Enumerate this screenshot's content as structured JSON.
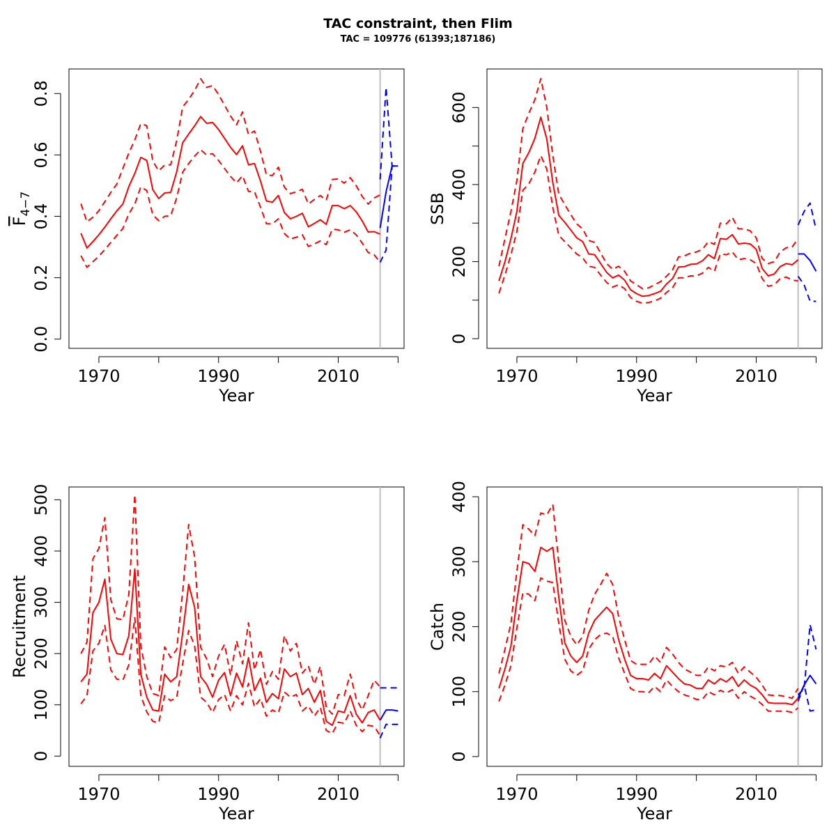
{
  "title": "TAC constraint, then Flim",
  "subtitle": "TAC = 109776 (61393;187186)",
  "colors": {
    "historic": "#ff0000",
    "forecast": "#0000ff",
    "divider": "#bebebe",
    "axis": "#000000"
  },
  "chart_data": [
    {
      "type": "line",
      "ylabel_main": "F",
      "ylabel_sub": "4−7",
      "xlabel": "Year",
      "xlim": [
        1965,
        2021
      ],
      "ylim": [
        -0.03,
        0.88
      ],
      "xticks": [
        1970,
        1980,
        1990,
        2000,
        2010,
        2020
      ],
      "xtick_labels": [
        "1970",
        "",
        "1990",
        "",
        "2010",
        ""
      ],
      "yticks": [
        0.0,
        0.2,
        0.4,
        0.6,
        0.8
      ],
      "ytick_labels": [
        "0.0",
        "0.2",
        "0.4",
        "0.6",
        "0.8"
      ],
      "divider_x": 2017,
      "x": [
        1967,
        1968,
        1969,
        1970,
        1971,
        1972,
        1973,
        1974,
        1975,
        1976,
        1977,
        1978,
        1979,
        1980,
        1981,
        1982,
        1983,
        1984,
        1985,
        1986,
        1987,
        1988,
        1989,
        1990,
        1991,
        1992,
        1993,
        1994,
        1995,
        1996,
        1997,
        1998,
        1999,
        2000,
        2001,
        2002,
        2003,
        2004,
        2005,
        2006,
        2007,
        2008,
        2009,
        2010,
        2011,
        2012,
        2013,
        2014,
        2015,
        2016,
        2017
      ],
      "series": [
        {
          "role": "estimate",
          "values": [
            0.345,
            0.297,
            0.318,
            0.34,
            0.365,
            0.392,
            0.418,
            0.44,
            0.497,
            0.54,
            0.592,
            0.582,
            0.487,
            0.458,
            0.476,
            0.478,
            0.545,
            0.64,
            0.668,
            0.695,
            0.725,
            0.703,
            0.706,
            0.683,
            0.654,
            0.625,
            0.601,
            0.63,
            0.568,
            0.572,
            0.515,
            0.45,
            0.446,
            0.468,
            0.412,
            0.392,
            0.4,
            0.41,
            0.366,
            0.377,
            0.389,
            0.374,
            0.435,
            0.435,
            0.425,
            0.435,
            0.415,
            0.385,
            0.349,
            0.35,
            0.342
          ]
        },
        {
          "role": "upper",
          "values": [
            0.441,
            0.382,
            0.397,
            0.418,
            0.448,
            0.478,
            0.505,
            0.556,
            0.606,
            0.649,
            0.702,
            0.695,
            0.58,
            0.548,
            0.567,
            0.568,
            0.646,
            0.756,
            0.781,
            0.81,
            0.848,
            0.82,
            0.826,
            0.797,
            0.762,
            0.727,
            0.698,
            0.74,
            0.666,
            0.678,
            0.612,
            0.535,
            0.533,
            0.56,
            0.495,
            0.474,
            0.48,
            0.488,
            0.44,
            0.455,
            0.468,
            0.452,
            0.52,
            0.522,
            0.508,
            0.526,
            0.5,
            0.465,
            0.44,
            0.46,
            0.47
          ]
        },
        {
          "role": "lower",
          "values": [
            0.272,
            0.234,
            0.252,
            0.27,
            0.292,
            0.315,
            0.338,
            0.36,
            0.408,
            0.44,
            0.496,
            0.484,
            0.405,
            0.386,
            0.4,
            0.402,
            0.46,
            0.544,
            0.572,
            0.596,
            0.617,
            0.6,
            0.604,
            0.582,
            0.556,
            0.53,
            0.509,
            0.532,
            0.481,
            0.48,
            0.43,
            0.376,
            0.375,
            0.392,
            0.344,
            0.326,
            0.332,
            0.34,
            0.302,
            0.31,
            0.32,
            0.308,
            0.358,
            0.356,
            0.348,
            0.356,
            0.34,
            0.313,
            0.282,
            0.275,
            0.25
          ]
        }
      ],
      "forecast_x": [
        2017,
        2018,
        2019,
        2020
      ],
      "forecast_series": [
        {
          "role": "estimate",
          "values": [
            0.362,
            0.48,
            0.564,
            0.564
          ]
        },
        {
          "role": "upper",
          "values": [
            0.52,
            0.82,
            0.564,
            0.564
          ]
        },
        {
          "role": "lower",
          "values": [
            0.25,
            0.29,
            0.564,
            0.564
          ]
        }
      ]
    },
    {
      "type": "line",
      "ylabel_main": "SSB",
      "ylabel_sub": "",
      "xlabel": "Year",
      "xlim": [
        1965,
        2021
      ],
      "ylim": [
        -25,
        700
      ],
      "xticks": [
        1970,
        1980,
        1990,
        2000,
        2010,
        2020
      ],
      "xtick_labels": [
        "1970",
        "",
        "1990",
        "",
        "2010",
        ""
      ],
      "yticks": [
        0,
        100,
        200,
        300,
        400,
        500,
        600
      ],
      "ytick_labels": [
        "0",
        "",
        "200",
        "",
        "400",
        "",
        "600"
      ],
      "divider_x": 2017,
      "x": [
        1967,
        1968,
        1969,
        1970,
        1971,
        1972,
        1973,
        1974,
        1975,
        1976,
        1977,
        1978,
        1979,
        1980,
        1981,
        1982,
        1983,
        1984,
        1985,
        1986,
        1987,
        1988,
        1989,
        1990,
        1991,
        1992,
        1993,
        1994,
        1995,
        1996,
        1997,
        1998,
        1999,
        2000,
        2001,
        2002,
        2003,
        2004,
        2005,
        2006,
        2007,
        2008,
        2009,
        2010,
        2011,
        2012,
        2013,
        2014,
        2015,
        2016,
        2017
      ],
      "series": [
        {
          "role": "estimate",
          "values": [
            150,
            200,
            260,
            330,
            455,
            483,
            520,
            575,
            518,
            405,
            320,
            302,
            282,
            262,
            252,
            220,
            218,
            195,
            172,
            158,
            165,
            152,
            127,
            117,
            110,
            112,
            117,
            123,
            142,
            156,
            186,
            187,
            193,
            194,
            202,
            218,
            208,
            260,
            258,
            270,
            246,
            248,
            246,
            232,
            182,
            163,
            168,
            187,
            195,
            192,
            205
          ]
        },
        {
          "role": "upper",
          "values": [
            188,
            260,
            330,
            410,
            545,
            585,
            620,
            675,
            600,
            475,
            375,
            348,
            322,
            298,
            285,
            255,
            250,
            222,
            195,
            180,
            188,
            175,
            150,
            140,
            130,
            132,
            140,
            148,
            162,
            178,
            212,
            215,
            222,
            225,
            232,
            252,
            245,
            300,
            298,
            315,
            285,
            285,
            280,
            262,
            208,
            195,
            200,
            225,
            236,
            238,
            260
          ]
        },
        {
          "role": "lower",
          "values": [
            118,
            165,
            218,
            278,
            385,
            402,
            432,
            475,
            440,
            340,
            268,
            252,
            236,
            220,
            210,
            188,
            185,
            165,
            146,
            134,
            140,
            130,
            107,
            97,
            92,
            94,
            98,
            105,
            120,
            132,
            158,
            158,
            163,
            163,
            170,
            185,
            175,
            220,
            218,
            225,
            205,
            208,
            205,
            195,
            156,
            136,
            140,
            156,
            160,
            152,
            150
          ]
        }
      ],
      "forecast_x": [
        2017,
        2018,
        2019,
        2020
      ],
      "forecast_series": [
        {
          "role": "estimate",
          "values": [
            220,
            220,
            203,
            175
          ]
        },
        {
          "role": "upper",
          "values": [
            295,
            330,
            352,
            283
          ]
        },
        {
          "role": "lower",
          "values": [
            162,
            140,
            97,
            97
          ]
        }
      ]
    },
    {
      "type": "line",
      "ylabel_main": "Recruitment",
      "ylabel_sub": "",
      "xlabel": "Year",
      "xlim": [
        1965,
        2021
      ],
      "ylim": [
        -20,
        525
      ],
      "xticks": [
        1970,
        1980,
        1990,
        2000,
        2010,
        2020
      ],
      "xtick_labels": [
        "1970",
        "",
        "1990",
        "",
        "2010",
        ""
      ],
      "yticks": [
        0,
        100,
        200,
        300,
        400,
        500
      ],
      "ytick_labels": [
        "0",
        "100",
        "200",
        "300",
        "400",
        "500"
      ],
      "divider_x": 2017,
      "x": [
        1967,
        1968,
        1969,
        1970,
        1971,
        1972,
        1973,
        1974,
        1975,
        1976,
        1977,
        1978,
        1979,
        1980,
        1981,
        1982,
        1983,
        1984,
        1985,
        1986,
        1987,
        1988,
        1989,
        1990,
        1991,
        1992,
        1993,
        1994,
        1995,
        1996,
        1997,
        1998,
        1999,
        2000,
        2001,
        2002,
        2003,
        2004,
        2005,
        2006,
        2007,
        2008,
        2009,
        2010,
        2011,
        2012,
        2013,
        2014,
        2015,
        2016,
        2017
      ],
      "series": [
        {
          "role": "estimate",
          "values": [
            145,
            160,
            280,
            300,
            345,
            228,
            200,
            198,
            235,
            365,
            160,
            115,
            90,
            88,
            160,
            145,
            155,
            240,
            335,
            290,
            155,
            140,
            115,
            148,
            163,
            118,
            162,
            135,
            192,
            128,
            152,
            105,
            122,
            112,
            170,
            155,
            162,
            120,
            132,
            105,
            128,
            68,
            60,
            88,
            85,
            118,
            82,
            65,
            85,
            90,
            70
          ]
        },
        {
          "role": "upper",
          "values": [
            200,
            222,
            385,
            405,
            465,
            305,
            268,
            266,
            315,
            510,
            215,
            155,
            122,
            118,
            213,
            192,
            208,
            320,
            452,
            388,
            212,
            190,
            155,
            195,
            218,
            158,
            225,
            180,
            260,
            168,
            208,
            140,
            165,
            150,
            235,
            205,
            220,
            162,
            176,
            140,
            175,
            95,
            82,
            120,
            118,
            160,
            112,
            90,
            118,
            148,
            135
          ]
        },
        {
          "role": "lower",
          "values": [
            102,
            118,
            205,
            220,
            255,
            168,
            150,
            148,
            178,
            270,
            118,
            86,
            68,
            65,
            118,
            108,
            115,
            180,
            245,
            215,
            115,
            105,
            85,
            110,
            120,
            88,
            118,
            100,
            142,
            96,
            112,
            78,
            90,
            84,
            125,
            115,
            120,
            88,
            98,
            78,
            95,
            50,
            44,
            66,
            64,
            88,
            60,
            48,
            60,
            58,
            40
          ]
        }
      ],
      "forecast_x": [
        2017,
        2018,
        2019,
        2020
      ],
      "forecast_series": [
        {
          "role": "estimate",
          "values": [
            70,
            90,
            90,
            88
          ]
        },
        {
          "role": "upper",
          "values": [
            133,
            133,
            133,
            133
          ]
        },
        {
          "role": "lower",
          "values": [
            35,
            62,
            62,
            62
          ]
        }
      ]
    },
    {
      "type": "line",
      "ylabel_main": "Catch",
      "ylabel_sub": "",
      "xlabel": "Year",
      "xlim": [
        1965,
        2021
      ],
      "ylim": [
        -15,
        415
      ],
      "xticks": [
        1970,
        1980,
        1990,
        2000,
        2010,
        2020
      ],
      "xtick_labels": [
        "1970",
        "",
        "1990",
        "",
        "2010",
        ""
      ],
      "yticks": [
        0,
        100,
        200,
        300,
        400
      ],
      "ytick_labels": [
        "0",
        "100",
        "200",
        "300",
        "400"
      ],
      "divider_x": 2017,
      "x": [
        1967,
        1968,
        1969,
        1970,
        1971,
        1972,
        1973,
        1974,
        1975,
        1976,
        1977,
        1978,
        1979,
        1980,
        1981,
        1982,
        1983,
        1984,
        1985,
        1986,
        1987,
        1988,
        1989,
        1990,
        1991,
        1992,
        1993,
        1994,
        1995,
        1996,
        1997,
        1998,
        1999,
        2000,
        2001,
        2002,
        2003,
        2004,
        2005,
        2006,
        2007,
        2008,
        2009,
        2010,
        2011,
        2012,
        2013,
        2014,
        2015,
        2016,
        2017
      ],
      "series": [
        {
          "role": "estimate",
          "values": [
            105,
            135,
            170,
            240,
            300,
            297,
            285,
            322,
            316,
            322,
            245,
            175,
            155,
            145,
            155,
            190,
            210,
            220,
            230,
            220,
            180,
            150,
            125,
            120,
            120,
            118,
            128,
            120,
            140,
            130,
            120,
            112,
            110,
            105,
            105,
            118,
            112,
            120,
            115,
            123,
            108,
            118,
            110,
            105,
            95,
            83,
            82,
            82,
            82,
            80,
            90
          ]
        },
        {
          "role": "upper",
          "values": [
            128,
            165,
            205,
            285,
            357,
            350,
            340,
            375,
            372,
            388,
            298,
            210,
            185,
            172,
            185,
            225,
            250,
            265,
            282,
            265,
            215,
            180,
            148,
            142,
            142,
            142,
            155,
            145,
            168,
            158,
            145,
            135,
            130,
            125,
            125,
            138,
            132,
            140,
            138,
            145,
            128,
            138,
            130,
            122,
            110,
            95,
            94,
            94,
            92,
            90,
            105
          ]
        },
        {
          "role": "lower",
          "values": [
            85,
            110,
            140,
            198,
            252,
            250,
            240,
            275,
            270,
            268,
            205,
            150,
            132,
            125,
            132,
            165,
            180,
            188,
            190,
            185,
            152,
            128,
            105,
            100,
            100,
            98,
            108,
            100,
            118,
            108,
            100,
            95,
            92,
            88,
            88,
            100,
            95,
            102,
            98,
            103,
            90,
            100,
            93,
            88,
            80,
            70,
            70,
            70,
            70,
            68,
            75
          ]
        }
      ],
      "forecast_x": [
        2017,
        2018,
        2019,
        2020
      ],
      "forecast_series": [
        {
          "role": "estimate",
          "values": [
            90,
            110,
            125,
            112
          ]
        },
        {
          "role": "upper",
          "values": [
            95,
            105,
            203,
            165
          ]
        },
        {
          "role": "lower",
          "values": [
            85,
            110,
            70,
            72
          ]
        }
      ]
    }
  ]
}
